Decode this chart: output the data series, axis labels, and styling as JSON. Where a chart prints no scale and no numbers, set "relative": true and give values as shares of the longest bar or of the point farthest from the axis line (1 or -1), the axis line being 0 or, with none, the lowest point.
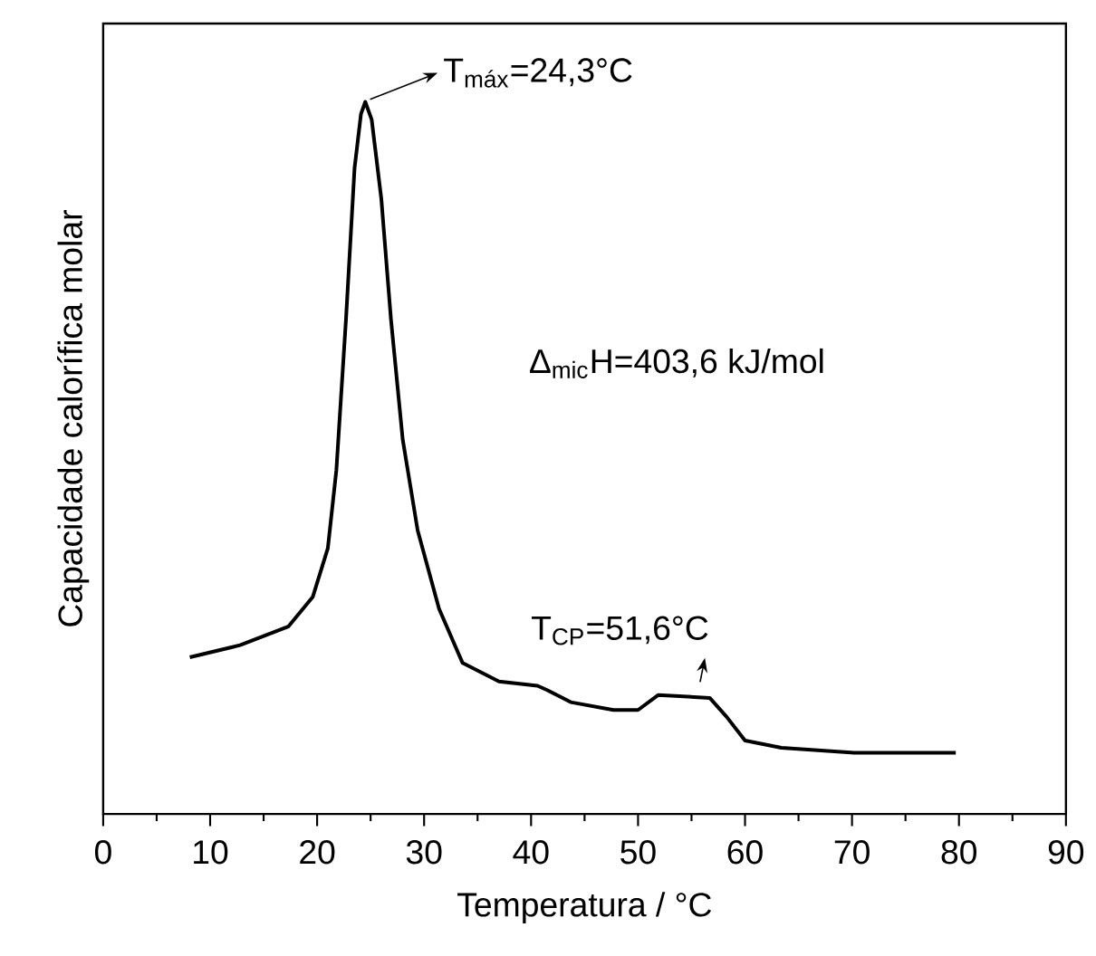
{
  "chart_data": {
    "type": "line",
    "relative": true,
    "tick_labels": "x",
    "xlabel": "Temperatura / °C",
    "ylabel": "Capacidade calorífica molar",
    "xlim": [
      0,
      90
    ],
    "xticks": [
      0,
      10,
      20,
      30,
      40,
      50,
      60,
      70,
      80,
      90
    ],
    "series": [
      {
        "color": "#000000",
        "x": [
          8.1,
          12.8,
          17.3,
          19.6,
          21.0,
          21.8,
          22.7,
          23.5,
          24.1,
          24.5,
          25.1,
          26.0,
          26.9,
          28.0,
          29.4,
          31.4,
          33.6,
          37.0,
          40.6,
          41.5,
          43.7,
          47.7,
          50.0,
          51.9,
          56.7,
          58.3,
          60.0,
          63.4,
          70.2,
          79.7
        ],
        "values": [
          0.22,
          0.237,
          0.263,
          0.305,
          0.373,
          0.483,
          0.695,
          0.907,
          0.983,
          1,
          0.975,
          0.864,
          0.695,
          0.526,
          0.398,
          0.288,
          0.212,
          0.186,
          0.18,
          0.174,
          0.157,
          0.146,
          0.146,
          0.167,
          0.163,
          0.136,
          0.103,
          0.093,
          0.086,
          0.086
        ]
      }
    ],
    "annotations": [
      {
        "text": "T$_{máx}$=24,3°C",
        "x": 24.5,
        "y": 1
      },
      "Δ$_{mic}$H=403,6 kJ/mol",
      {
        "text": "T$_{CP}$=51,6°C",
        "x": 55.8,
        "y": 0.165
      }
    ]
  }
}
